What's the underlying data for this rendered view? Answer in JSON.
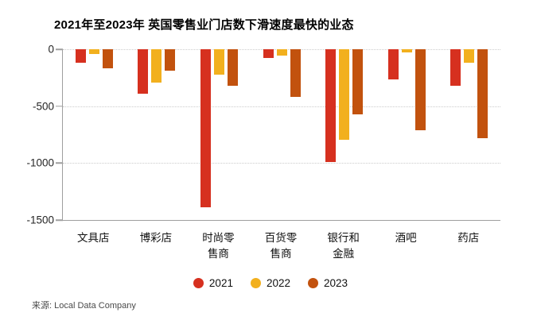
{
  "title": "2021年至2023年 英国零售业门店数下滑速度最快的业态",
  "source": "来源: Local Data Company",
  "colors": {
    "axis": "#9e9e9e",
    "grid": "#cccccc",
    "source_text": "#4a4a4a",
    "series_2021": "#d6301f",
    "series_2022": "#f2b01e",
    "series_2023": "#c2520e"
  },
  "chart_data": {
    "type": "bar",
    "title": "2021年至2023年 英国零售业门店数下滑速度最快的业态",
    "categories": [
      "文具店",
      "博彩店",
      "时尚零售商",
      "百货零售商",
      "银行和金融",
      "酒吧",
      "药店"
    ],
    "series": [
      {
        "name": "2021",
        "color": "#d6301f",
        "values": [
          -120,
          -390,
          -1390,
          -80,
          -990,
          -265,
          -320
        ]
      },
      {
        "name": "2022",
        "color": "#f2b01e",
        "values": [
          -40,
          -295,
          -225,
          -55,
          -795,
          -25,
          -120
        ]
      },
      {
        "name": "2023",
        "color": "#c2520e",
        "values": [
          -170,
          -190,
          -320,
          -420,
          -575,
          -715,
          -780
        ]
      }
    ],
    "xlabel": "",
    "ylabel": "",
    "ylim": [
      -1500,
      0
    ],
    "yticks": [
      0,
      -500,
      -1000,
      -1500
    ],
    "grid": "horizontal-dotted",
    "legend_position": "bottom",
    "bar_orientation": "vertical-negative"
  }
}
